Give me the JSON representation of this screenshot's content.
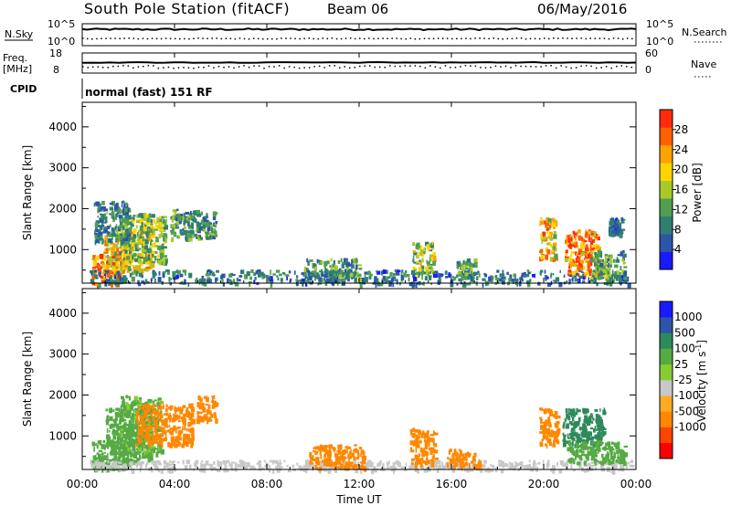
{
  "header": {
    "station": "South Pole Station (fitACF)",
    "beam": "Beam 06",
    "date": "06/May/2016"
  },
  "top_panels": {
    "nsky_label": "N.Sky",
    "nsky_ticks": [
      "10^5",
      "10^0"
    ],
    "nsearch_label": "N.Search",
    "nsearch_ticks": [
      "10^5",
      "10^0"
    ],
    "freq_label_1": "Freq.",
    "freq_label_2": "[MHz]",
    "freq_ticks": [
      "18",
      "8"
    ],
    "nave_label": "Nave",
    "nave_ticks": [
      "60",
      "0"
    ],
    "cpid_label": "CPID",
    "cpid_value": "normal (fast) 151 RF"
  },
  "x_axis": {
    "title": "Time UT",
    "ticks": [
      "00:00",
      "04:00",
      "08:00",
      "12:00",
      "16:00",
      "20:00",
      "00:00"
    ]
  },
  "colors": {
    "power": [
      "#1a1aff",
      "#2c55a8",
      "#2f7f73",
      "#4f9e51",
      "#a8c929",
      "#ffd400",
      "#ffa300",
      "#ff6000",
      "#ff2b0e"
    ],
    "velocity": [
      "#ff0000",
      "#ff4400",
      "#ff8800",
      "#ffaa22",
      "#c8c8c8",
      "#88cc33",
      "#55aa44",
      "#2d8a5a",
      "#2c55a8",
      "#1a1aff"
    ]
  },
  "chart_data": [
    {
      "type": "heatmap",
      "name": "Power",
      "ylabel": "Slant Range [km]",
      "xlabel": "",
      "yticks": [
        "1000",
        "2000",
        "3000",
        "4000"
      ],
      "ylim": [
        180,
        4600
      ],
      "xlim": [
        0,
        24
      ],
      "colorbar": {
        "title": "Power [dB]",
        "ticks": [
          "4",
          "8",
          "12",
          "16",
          "20",
          "24",
          "28"
        ],
        "range": [
          0,
          32
        ]
      },
      "regions": [
        {
          "t0": 0.4,
          "t1": 1.8,
          "r0": 180,
          "r1": 900,
          "value": 26
        },
        {
          "t0": 0.9,
          "t1": 3.0,
          "r0": 500,
          "r1": 1500,
          "value": 20
        },
        {
          "t0": 1.6,
          "t1": 3.6,
          "r0": 700,
          "r1": 1900,
          "value": 14
        },
        {
          "t0": 0.5,
          "t1": 2.0,
          "r0": 1200,
          "r1": 2200,
          "value": 9
        },
        {
          "t0": 3.8,
          "t1": 5.8,
          "r0": 1300,
          "r1": 2000,
          "value": 11
        },
        {
          "t0": 0.3,
          "t1": 23.8,
          "r0": 180,
          "r1": 520,
          "value": 8
        },
        {
          "t0": 9.6,
          "t1": 12.0,
          "r0": 280,
          "r1": 800,
          "value": 10
        },
        {
          "t0": 14.3,
          "t1": 15.2,
          "r0": 350,
          "r1": 1200,
          "value": 15
        },
        {
          "t0": 16.2,
          "t1": 17.0,
          "r0": 300,
          "r1": 800,
          "value": 12
        },
        {
          "t0": 19.8,
          "t1": 20.5,
          "r0": 800,
          "r1": 1800,
          "value": 22
        },
        {
          "t0": 20.9,
          "t1": 22.4,
          "r0": 400,
          "r1": 1500,
          "value": 25
        },
        {
          "t0": 22.0,
          "t1": 23.5,
          "r0": 300,
          "r1": 1000,
          "value": 12
        },
        {
          "t0": 22.8,
          "t1": 23.4,
          "r0": 1400,
          "r1": 1800,
          "value": 7
        }
      ]
    },
    {
      "type": "heatmap",
      "name": "Velocity",
      "ylabel": "Slant Range [km]",
      "xlabel": "Time UT",
      "yticks": [
        "1000",
        "2000",
        "3000",
        "4000"
      ],
      "ylim": [
        180,
        4600
      ],
      "xlim": [
        0,
        24
      ],
      "colorbar": {
        "title": "Velocity [m s",
        "title_sup": "-1",
        "title_end": "]",
        "ticks": [
          "1000",
          "500",
          "100",
          "25",
          "-25",
          "-100",
          "-500",
          "-1000"
        ]
      },
      "regions": [
        {
          "t0": 0.4,
          "t1": 2.0,
          "r0": 200,
          "r1": 900,
          "value": 250
        },
        {
          "t0": 1.0,
          "t1": 3.0,
          "r0": 400,
          "r1": 1700,
          "value": 150
        },
        {
          "t0": 1.6,
          "t1": 3.4,
          "r0": 600,
          "r1": 2000,
          "value": 120
        },
        {
          "t0": 2.3,
          "t1": 4.8,
          "r0": 800,
          "r1": 1800,
          "value": -200
        },
        {
          "t0": 4.9,
          "t1": 5.8,
          "r0": 1400,
          "r1": 2000,
          "value": -250
        },
        {
          "t0": 0.3,
          "t1": 23.8,
          "r0": 180,
          "r1": 420,
          "value": 0
        },
        {
          "t0": 9.8,
          "t1": 12.2,
          "r0": 250,
          "r1": 800,
          "value": -150
        },
        {
          "t0": 14.2,
          "t1": 15.3,
          "r0": 300,
          "r1": 1200,
          "value": -200
        },
        {
          "t0": 15.8,
          "t1": 17.2,
          "r0": 250,
          "r1": 700,
          "value": -150
        },
        {
          "t0": 19.8,
          "t1": 20.6,
          "r0": 800,
          "r1": 1700,
          "value": -300
        },
        {
          "t0": 20.8,
          "t1": 22.6,
          "r0": 800,
          "r1": 1700,
          "value": 700
        },
        {
          "t0": 21.0,
          "t1": 23.5,
          "r0": 350,
          "r1": 900,
          "value": 150
        }
      ]
    }
  ]
}
